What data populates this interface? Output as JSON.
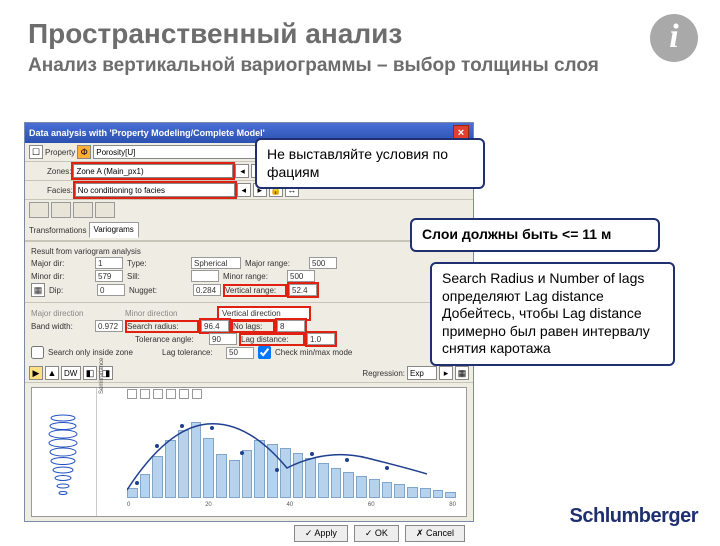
{
  "title": "Пространственный анализ",
  "subtitle": "Анализ вертикальной вариограммы – выбор толщины слоя",
  "logo": "Schlumberger",
  "window": {
    "title": "Data analysis with 'Property Modeling/Complete Model'",
    "property_lbl": "Property",
    "property_val": "Porosity[U]",
    "zones_lbl": "Zones:",
    "zones_val": "Zone A (Main_px1)",
    "facies_lbl": "Facies:",
    "facies_val": "No conditioning to facies",
    "transform_lbl": "Transformations",
    "variograms_lbl": "Variograms",
    "result_lbl": "Result from variogram analysis",
    "fields": {
      "major_dir_lbl": "Major dir:",
      "major_dir": "1",
      "type_lbl": "Type:",
      "type": "Spherical",
      "major_range_lbl": "Major range:",
      "major_range": "500",
      "minor_dir_lbl": "Minor dir:",
      "minor_dir": "579",
      "sill_lbl": "Sill:",
      "sill": "",
      "minor_range_lbl": "Minor range:",
      "minor_range": "500",
      "dip_lbl": "Dip:",
      "dip": "0",
      "nugget_lbl": "Nugget:",
      "nugget": "0.284",
      "vert_range_lbl": "Vertical range:",
      "vert_range": "52.4"
    },
    "dirs": {
      "major": "Major direction",
      "minor": "Minor direction",
      "vert": "Vertical direction"
    },
    "settings": {
      "bandwidth_lbl": "Band width:",
      "bandwidth": "0.972",
      "search_lbl": "Search radius:",
      "search": "96.4",
      "nlags_lbl": "No lags:",
      "nlags": "8",
      "tol_lbl": "Tolerance angle:",
      "tol": "90",
      "lagdist_lbl": "Lag distance:",
      "lagdist": "1.0",
      "sthick_lbl": "Search only inside zone",
      "lagtol_lbl": "Lag tolerance:",
      "lagtol": "50",
      "checkmin_lbl": "Check min/max mode"
    },
    "chart_ctrl": {
      "dw_lbl": "DW",
      "regression_lbl": "Regression:",
      "regression": "Exp"
    },
    "chart": {
      "bars": [
        12,
        30,
        52,
        72,
        85,
        95,
        75,
        55,
        48,
        60,
        72,
        68,
        62,
        56,
        50,
        44,
        38,
        32,
        28,
        24,
        20,
        17,
        14,
        12,
        10,
        8
      ],
      "x_ticks": [
        "0",
        "20",
        "40",
        "60",
        "80"
      ],
      "y_label": "Semivariance"
    },
    "buttons": {
      "apply": "Apply",
      "ok": "OK",
      "cancel": "Cancel"
    }
  },
  "callouts": {
    "c1": "Не выставляйте условия по фациям",
    "c2": "Слои должны быть <= 11 м",
    "c3a": "Search Radius и Number of lags определяют Lag distance",
    "c3b": "Добейтесь, чтобы Lag distance примерно был равен интервалу снятия каротажа"
  },
  "colors": {
    "accent": "#1f2f70",
    "red": "#e02010",
    "bar": "#b7d2ec"
  }
}
